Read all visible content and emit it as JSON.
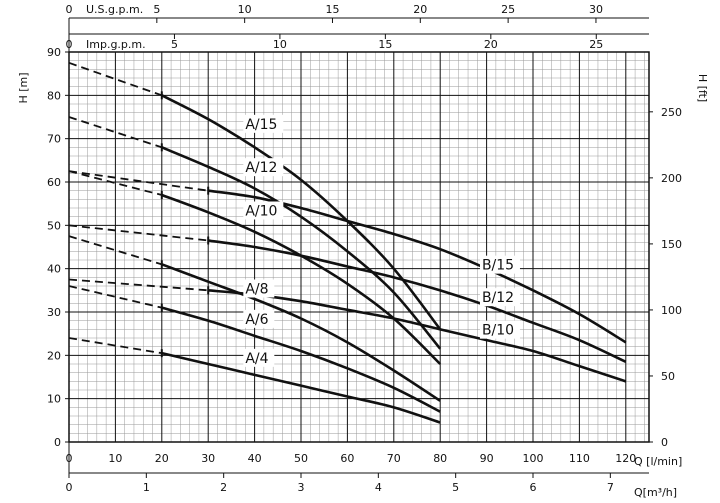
{
  "chart_data": {
    "type": "line",
    "title": "",
    "grid": true,
    "legend": "none (curves labeled inline)",
    "axes": {
      "left": {
        "label": "H [m]",
        "min": 0,
        "max": 90,
        "ticks": [
          0,
          10,
          20,
          30,
          40,
          50,
          60,
          70,
          80,
          90
        ]
      },
      "right": {
        "label": "H [ft]",
        "min": 0,
        "max": 295.3,
        "ticks": [
          0,
          50,
          100,
          150,
          200,
          250
        ]
      },
      "bottom1": {
        "label": "Q [l/min]",
        "min": 0,
        "max": 125,
        "ticks": [
          0,
          10,
          20,
          30,
          40,
          50,
          60,
          70,
          80,
          90,
          100,
          110,
          120
        ]
      },
      "bottom2": {
        "label": "Q[m³/h]",
        "min": 0,
        "max": 7.5,
        "ticks": [
          0,
          1,
          2,
          3,
          4,
          5,
          6,
          7
        ]
      },
      "top1": {
        "label": "U.S.g.p.m.",
        "min": 0,
        "max": 33.02,
        "ticks": [
          0,
          5,
          10,
          15,
          20,
          25,
          30
        ]
      },
      "top2": {
        "label": "Imp.g.p.m.",
        "min": 0,
        "max": 27.5,
        "ticks": [
          0,
          5,
          10,
          15,
          20,
          25
        ]
      }
    },
    "series": [
      {
        "name": "A/15",
        "dashed": {
          "x": [
            0,
            20
          ],
          "y": [
            87.5,
            80
          ]
        },
        "solid": {
          "x": [
            20,
            30,
            40,
            50,
            60,
            70,
            80
          ],
          "y": [
            80,
            74.5,
            68,
            60.5,
            51,
            40,
            26
          ]
        }
      },
      {
        "name": "A/12",
        "dashed": {
          "x": [
            0,
            20
          ],
          "y": [
            75,
            68
          ]
        },
        "solid": {
          "x": [
            20,
            30,
            40,
            50,
            60,
            70,
            80
          ],
          "y": [
            68,
            63.5,
            58.5,
            52,
            44,
            34.5,
            21.5
          ]
        }
      },
      {
        "name": "A/10",
        "dashed": {
          "x": [
            0,
            20
          ],
          "y": [
            62.5,
            57
          ]
        },
        "solid": {
          "x": [
            20,
            30,
            40,
            50,
            60,
            70,
            80
          ],
          "y": [
            57,
            53,
            48.5,
            43,
            36.5,
            28.5,
            18
          ]
        }
      },
      {
        "name": "A/8",
        "dashed": {
          "x": [
            0,
            20
          ],
          "y": [
            47.5,
            41
          ]
        },
        "solid": {
          "x": [
            20,
            30,
            40,
            50,
            60,
            70,
            80
          ],
          "y": [
            41,
            37,
            33,
            28.5,
            23,
            16.5,
            9.5
          ]
        }
      },
      {
        "name": "A/6",
        "dashed": {
          "x": [
            0,
            20
          ],
          "y": [
            36,
            31
          ]
        },
        "solid": {
          "x": [
            20,
            30,
            40,
            50,
            60,
            70,
            80
          ],
          "y": [
            31,
            28,
            24.5,
            21,
            17,
            12.5,
            7
          ]
        }
      },
      {
        "name": "A/4",
        "dashed": {
          "x": [
            0,
            20
          ],
          "y": [
            24,
            20.5
          ]
        },
        "solid": {
          "x": [
            20,
            30,
            40,
            50,
            60,
            70,
            80
          ],
          "y": [
            20.5,
            18,
            15.5,
            13,
            10.5,
            8,
            4.5
          ]
        }
      },
      {
        "name": "B/15",
        "dashed": {
          "x": [
            0,
            30
          ],
          "y": [
            62.5,
            58
          ]
        },
        "solid": {
          "x": [
            30,
            40,
            50,
            60,
            70,
            80,
            90,
            100,
            110,
            120
          ],
          "y": [
            58,
            56.5,
            54,
            51,
            48,
            44.5,
            40,
            35,
            29.5,
            23
          ]
        }
      },
      {
        "name": "B/12",
        "dashed": {
          "x": [
            0,
            30
          ],
          "y": [
            50,
            46.5
          ]
        },
        "solid": {
          "x": [
            30,
            40,
            50,
            60,
            70,
            80,
            90,
            100,
            110,
            120
          ],
          "y": [
            46.5,
            45,
            43,
            40.5,
            38,
            35,
            31.5,
            27.5,
            23.5,
            18.5
          ]
        }
      },
      {
        "name": "B/10",
        "dashed": {
          "x": [
            0,
            30
          ],
          "y": [
            37.5,
            35
          ]
        },
        "solid": {
          "x": [
            30,
            40,
            50,
            60,
            70,
            80,
            90,
            100,
            110,
            120
          ],
          "y": [
            35,
            34,
            32.5,
            30.5,
            28.5,
            26,
            23.5,
            21,
            17.5,
            14
          ]
        }
      }
    ],
    "labels": [
      {
        "text": "A/15",
        "x": 38,
        "y": 72.5
      },
      {
        "text": "A/12",
        "x": 38,
        "y": 62.5
      },
      {
        "text": "A/10",
        "x": 38,
        "y": 52.5
      },
      {
        "text": "A/8",
        "x": 38,
        "y": 34.5
      },
      {
        "text": "A/6",
        "x": 38,
        "y": 27.5
      },
      {
        "text": "A/4",
        "x": 38,
        "y": 18.5
      },
      {
        "text": "B/15",
        "x": 89,
        "y": 40
      },
      {
        "text": "B/12",
        "x": 89,
        "y": 32.5
      },
      {
        "text": "B/10",
        "x": 89,
        "y": 25
      }
    ]
  }
}
